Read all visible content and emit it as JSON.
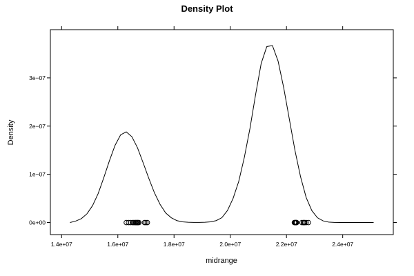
{
  "chart_data": {
    "type": "line",
    "title": "Density Plot",
    "xlabel": "midrange",
    "ylabel": "Density",
    "xlim": [
      13600000,
      25800000
    ],
    "ylim": [
      -2.5e-08,
      4e-07
    ],
    "x_ticks": [
      {
        "value": 14000000,
        "label": "1.4e+07"
      },
      {
        "value": 16000000,
        "label": "1.6e+07"
      },
      {
        "value": 18000000,
        "label": "1.8e+07"
      },
      {
        "value": 20000000,
        "label": "2.0e+07"
      },
      {
        "value": 22000000,
        "label": "2.2e+07"
      },
      {
        "value": 24000000,
        "label": "2.4e+07"
      }
    ],
    "y_ticks": [
      {
        "value": 0,
        "label": "0e+00"
      },
      {
        "value": 1e-07,
        "label": "1e−07"
      },
      {
        "value": 2e-07,
        "label": "2e−07"
      },
      {
        "value": 3e-07,
        "label": "3e−07"
      }
    ],
    "grid": false,
    "series": [
      {
        "x": [
          14300000,
          14500000,
          14700000,
          14900000,
          15100000,
          15300000,
          15500000,
          15700000,
          15900000,
          16100000,
          16300000,
          16500000,
          16700000,
          16900000,
          17100000,
          17300000,
          17500000,
          17700000,
          17900000,
          18100000,
          18300000,
          18500000,
          18700000,
          18900000,
          19100000,
          19300000,
          19500000,
          19700000,
          19900000,
          20100000,
          20300000,
          20500000,
          20700000,
          20900000,
          21100000,
          21300000,
          21500000,
          21700000,
          21900000,
          22100000,
          22300000,
          22500000,
          22700000,
          22900000,
          23100000,
          23300000,
          23500000,
          23700000,
          23900000,
          24100000,
          24300000,
          24500000,
          24700000,
          24900000,
          25100000
        ],
        "y": [
          0.0,
          3e-09,
          8e-09,
          1.8e-08,
          3.5e-08,
          6e-08,
          9.3e-08,
          1.28e-07,
          1.6e-07,
          1.82e-07,
          1.88e-07,
          1.78e-07,
          1.55e-07,
          1.24e-07,
          9.2e-08,
          6.2e-08,
          3.8e-08,
          2e-08,
          1e-08,
          4e-09,
          1.5e-09,
          5e-10,
          2e-10,
          2e-10,
          5e-10,
          1.5e-09,
          4e-09,
          1e-08,
          2.5e-08,
          5e-08,
          8.5e-08,
          1.35e-07,
          1.95e-07,
          2.65e-07,
          3.3e-07,
          3.65e-07,
          3.67e-07,
          3.35e-07,
          2.8e-07,
          2.15e-07,
          1.5e-07,
          9.5e-08,
          5.2e-08,
          2.5e-08,
          1e-08,
          3.5e-09,
          1e-09,
          2e-10,
          0.0,
          0.0,
          0.0,
          0.0,
          0.0,
          0.0,
          0.0
        ]
      }
    ],
    "rug_points": [
      16300000,
      16380000,
      16450000,
      16520000,
      16560000,
      16600000,
      16630000,
      16650000,
      16680000,
      16700000,
      16720000,
      16750000,
      16950000,
      17000000,
      17050000,
      22280000,
      22300000,
      22320000,
      22330000,
      22350000,
      22360000,
      22550000,
      22600000,
      22620000,
      22650000,
      22700000,
      22780000
    ]
  }
}
